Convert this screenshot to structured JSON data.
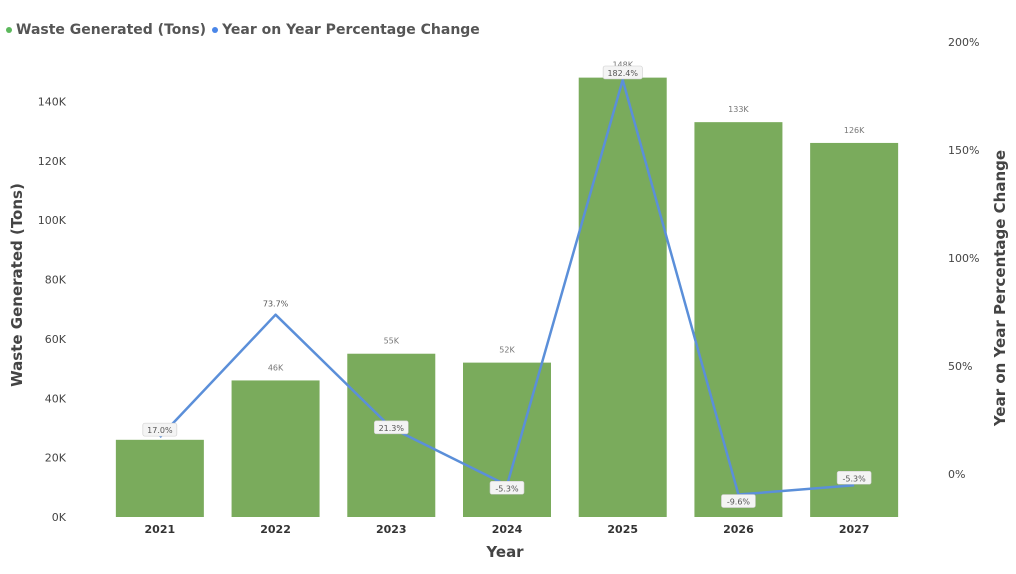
{
  "chart_data": {
    "type": "bar",
    "categories": [
      "2021",
      "2022",
      "2023",
      "2024",
      "2025",
      "2026",
      "2027"
    ],
    "series": [
      {
        "name": "Waste Generated (Tons)",
        "kind": "bar",
        "axis": "left",
        "values": [
          26000,
          46000,
          55000,
          52000,
          148000,
          133000,
          126000
        ],
        "labels": [
          "26K",
          "46K",
          "55K",
          "52K",
          "148K",
          "133K",
          "126K"
        ]
      },
      {
        "name": "Year on Year Percentage Change",
        "kind": "line",
        "axis": "right",
        "values": [
          17.0,
          73.7,
          21.3,
          -5.3,
          182.4,
          -9.6,
          -5.3
        ],
        "labels": [
          "17.0%",
          "73.7%",
          "21.3%",
          "-5.3%",
          "182.4%",
          "-9.6%",
          "-5.3%"
        ]
      }
    ],
    "xlabel": "Year",
    "ylabel": "Waste Generated (Tons)",
    "y2label": "Year on Year Percentage Change",
    "ylim": [
      0,
      160000
    ],
    "y2lim": [
      -20,
      200
    ],
    "yticks": [
      "0K",
      "20K",
      "40K",
      "60K",
      "80K",
      "100K",
      "120K",
      "140K"
    ],
    "yticks_values": [
      0,
      20000,
      40000,
      60000,
      80000,
      100000,
      120000,
      140000
    ],
    "y2ticks": [
      "0%",
      "50%",
      "100%",
      "150%",
      "200%"
    ],
    "y2ticks_values": [
      0,
      50,
      100,
      150,
      200
    ],
    "legend_position": "top-left",
    "grid": false,
    "colors": {
      "bar": "#7aab5c",
      "line": "#5b8fd9",
      "legend_bar_dot": "#5cb85c",
      "legend_line_dot": "#4a86e8"
    }
  }
}
